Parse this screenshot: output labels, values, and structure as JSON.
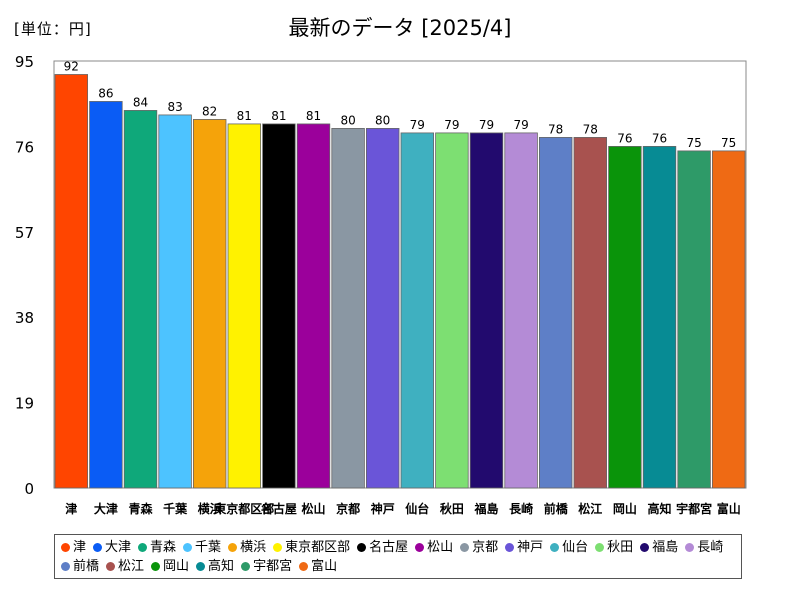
{
  "unit_label": "[単位：円]",
  "title": "最新のデータ [2025/4]",
  "chart_data": {
    "type": "bar",
    "categories": [
      "津",
      "大津",
      "青森",
      "千葉",
      "横浜",
      "東京都区部",
      "名古屋",
      "松山",
      "京都",
      "神戸",
      "仙台",
      "秋田",
      "福島",
      "長崎",
      "前橋",
      "松江",
      "岡山",
      "高知",
      "宇都宮",
      "富山"
    ],
    "values": [
      92,
      86,
      84,
      83,
      82,
      81,
      81,
      81,
      80,
      80,
      79,
      79,
      79,
      79,
      78,
      78,
      76,
      76,
      75,
      75
    ],
    "colors": [
      "#ff4500",
      "#0a5cf5",
      "#0fa87a",
      "#4dc3ff",
      "#f5a30a",
      "#fff200",
      "#000000",
      "#9b009b",
      "#8a97a3",
      "#6a55d8",
      "#3fb0c0",
      "#7ddf72",
      "#220a6e",
      "#b48bd6",
      "#5e7fc7",
      "#a8524f",
      "#0a940a",
      "#078b94",
      "#2e9a68",
      "#ef6a14"
    ],
    "yticks": [
      0,
      19,
      38,
      57,
      76,
      95
    ],
    "ylim": [
      0,
      95
    ],
    "grid": false,
    "legend": "bottom"
  }
}
